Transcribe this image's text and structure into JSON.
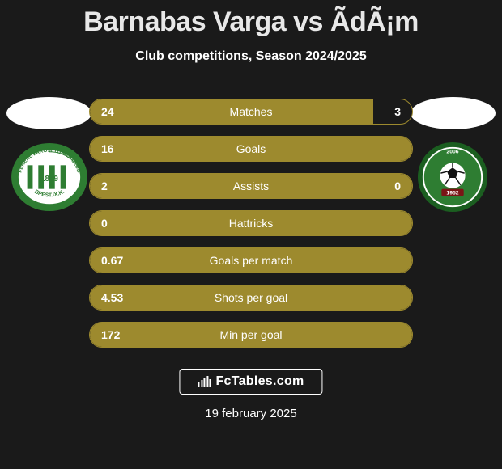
{
  "title": "Barnabas Varga vs ÃdÃ¡m",
  "subtitle": "Club competitions, Season 2024/2025",
  "accent_color": "#9d8a2e",
  "bars": [
    {
      "label": "Matches",
      "left": "24",
      "right": "3",
      "fill_pct": 88
    },
    {
      "label": "Goals",
      "left": "16",
      "right": "",
      "fill_pct": 100
    },
    {
      "label": "Assists",
      "left": "2",
      "right": "0",
      "fill_pct": 100
    },
    {
      "label": "Hattricks",
      "left": "0",
      "right": "",
      "fill_pct": 100
    },
    {
      "label": "Goals per match",
      "left": "0.67",
      "right": "",
      "fill_pct": 100
    },
    {
      "label": "Shots per goal",
      "left": "4.53",
      "right": "",
      "fill_pct": 100
    },
    {
      "label": "Min per goal",
      "left": "172",
      "right": "",
      "fill_pct": 100
    }
  ],
  "brand": "FcTables.com",
  "date": "19 february 2025",
  "club_left": {
    "name": "Ferencvárosi Torna Club",
    "top_text": "FERENCVÁROSI TORNA CLUB",
    "bottom_text": "BPEST.IX.K.",
    "year": "1899",
    "green": "#2e7d32",
    "white": "#ffffff"
  },
  "club_right": {
    "name": "Paksi FC",
    "year_top": "2006",
    "year_bottom": "1952",
    "green": "#2e7d32",
    "dark_green": "#1b5e20",
    "white": "#ffffff"
  }
}
